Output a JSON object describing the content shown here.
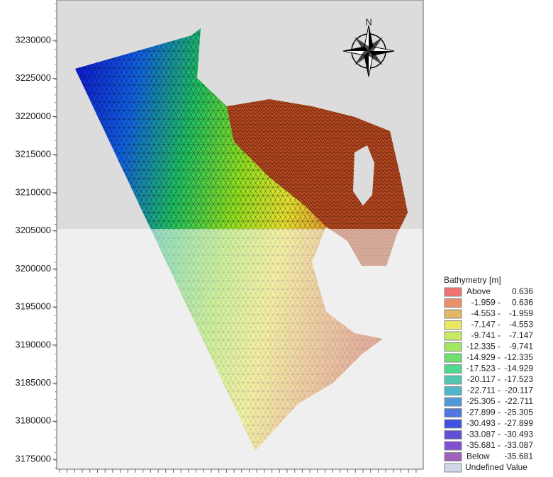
{
  "axis": {
    "ylim": [
      3173700,
      3235300
    ],
    "yticks": [
      3230000,
      3225000,
      3220000,
      3215000,
      3210000,
      3205000,
      3200000,
      3195000,
      3190000,
      3185000,
      3180000,
      3175000
    ]
  },
  "compass": {
    "label": "N"
  },
  "legend": {
    "title": "Bathymetry [m]",
    "items": [
      {
        "label": "Above",
        "range": "0.636",
        "color": "#f27272"
      },
      {
        "label": "-1.959 -",
        "range": "0.636",
        "color": "#e8906a"
      },
      {
        "label": "-4.553 -",
        "range": "-1.959",
        "color": "#e2b864"
      },
      {
        "label": "-7.147 -",
        "range": "-4.553",
        "color": "#e8e862"
      },
      {
        "label": "-9.741 -",
        "range": "-7.147",
        "color": "#c8ea62"
      },
      {
        "label": "-12.335 -",
        "range": "-9.741",
        "color": "#9ee862"
      },
      {
        "label": "-14.929 -",
        "range": "-12.335",
        "color": "#6ee070"
      },
      {
        "label": "-17.523 -",
        "range": "-14.929",
        "color": "#50d890"
      },
      {
        "label": "-20.117 -",
        "range": "-17.523",
        "color": "#50c8b0"
      },
      {
        "label": "-22.711 -",
        "range": "-20.117",
        "color": "#50b6c8"
      },
      {
        "label": "-25.305 -",
        "range": "-22.711",
        "color": "#5098d8"
      },
      {
        "label": "-27.899 -",
        "range": "-25.305",
        "color": "#5078e0"
      },
      {
        "label": "-30.493 -",
        "range": "-27.899",
        "color": "#4050e0"
      },
      {
        "label": "-33.087 -",
        "range": "-30.493",
        "color": "#6050d8"
      },
      {
        "label": "-35.681 -",
        "range": "-33.087",
        "color": "#8050d0"
      },
      {
        "label": "Below",
        "range": "-35.681",
        "color": "#a060c0"
      },
      {
        "label": "Undefined Value",
        "color": "#d0d8e8"
      }
    ]
  }
}
